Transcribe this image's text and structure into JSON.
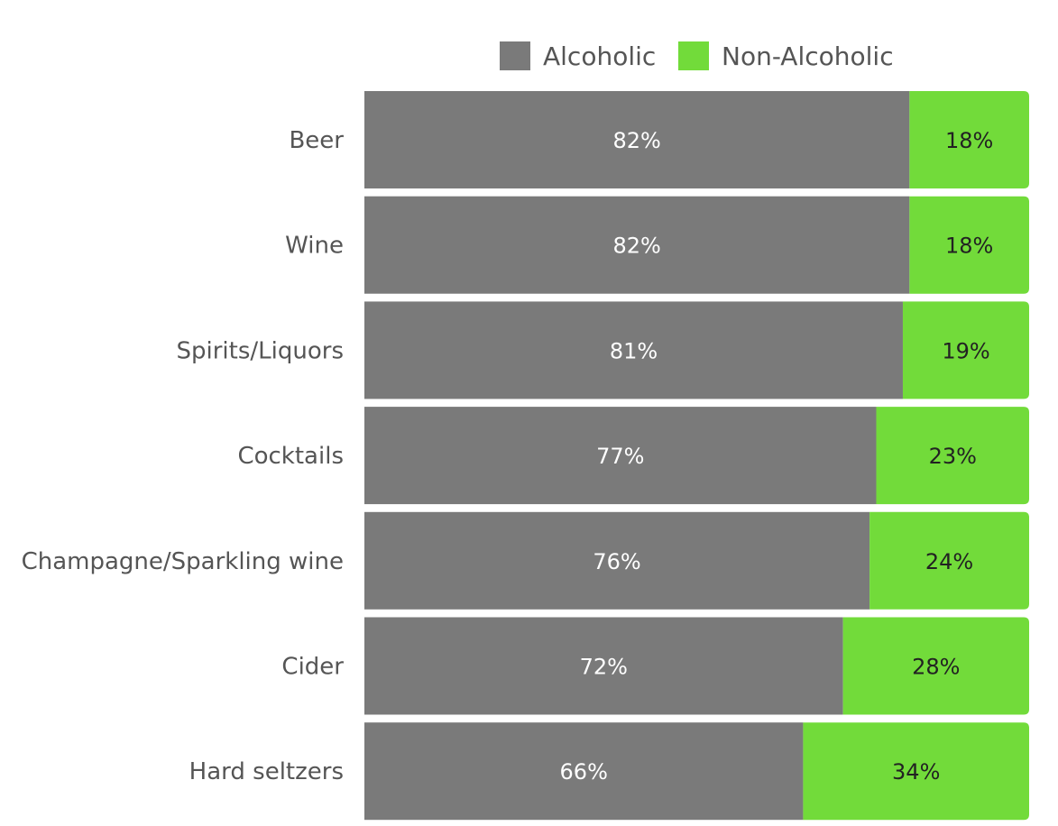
{
  "chart_data": {
    "type": "bar",
    "orientation": "horizontal",
    "stacked": true,
    "normalized": true,
    "categories": [
      "Beer",
      "Wine",
      "Spirits/Liquors",
      "Cocktails",
      "Champagne/Sparkling wine",
      "Cider",
      "Hard seltzers"
    ],
    "series": [
      {
        "name": "Alcoholic",
        "color": "#7a7a7a",
        "label_color": "#ffffff",
        "values": [
          82,
          82,
          81,
          77,
          76,
          72,
          66
        ],
        "labels": [
          "82%",
          "82%",
          "81%",
          "77%",
          "76%",
          "72%",
          "66%"
        ]
      },
      {
        "name": "Non-Alcoholic",
        "color": "#72db3a",
        "label_color": "#222222",
        "values": [
          18,
          18,
          19,
          23,
          24,
          28,
          34
        ],
        "labels": [
          "18%",
          "18%",
          "19%",
          "23%",
          "24%",
          "28%",
          "34%"
        ]
      }
    ],
    "title": "",
    "xlabel": "",
    "ylabel": "",
    "xlim": [
      0,
      100
    ],
    "grid": false,
    "legend_position": "top"
  }
}
